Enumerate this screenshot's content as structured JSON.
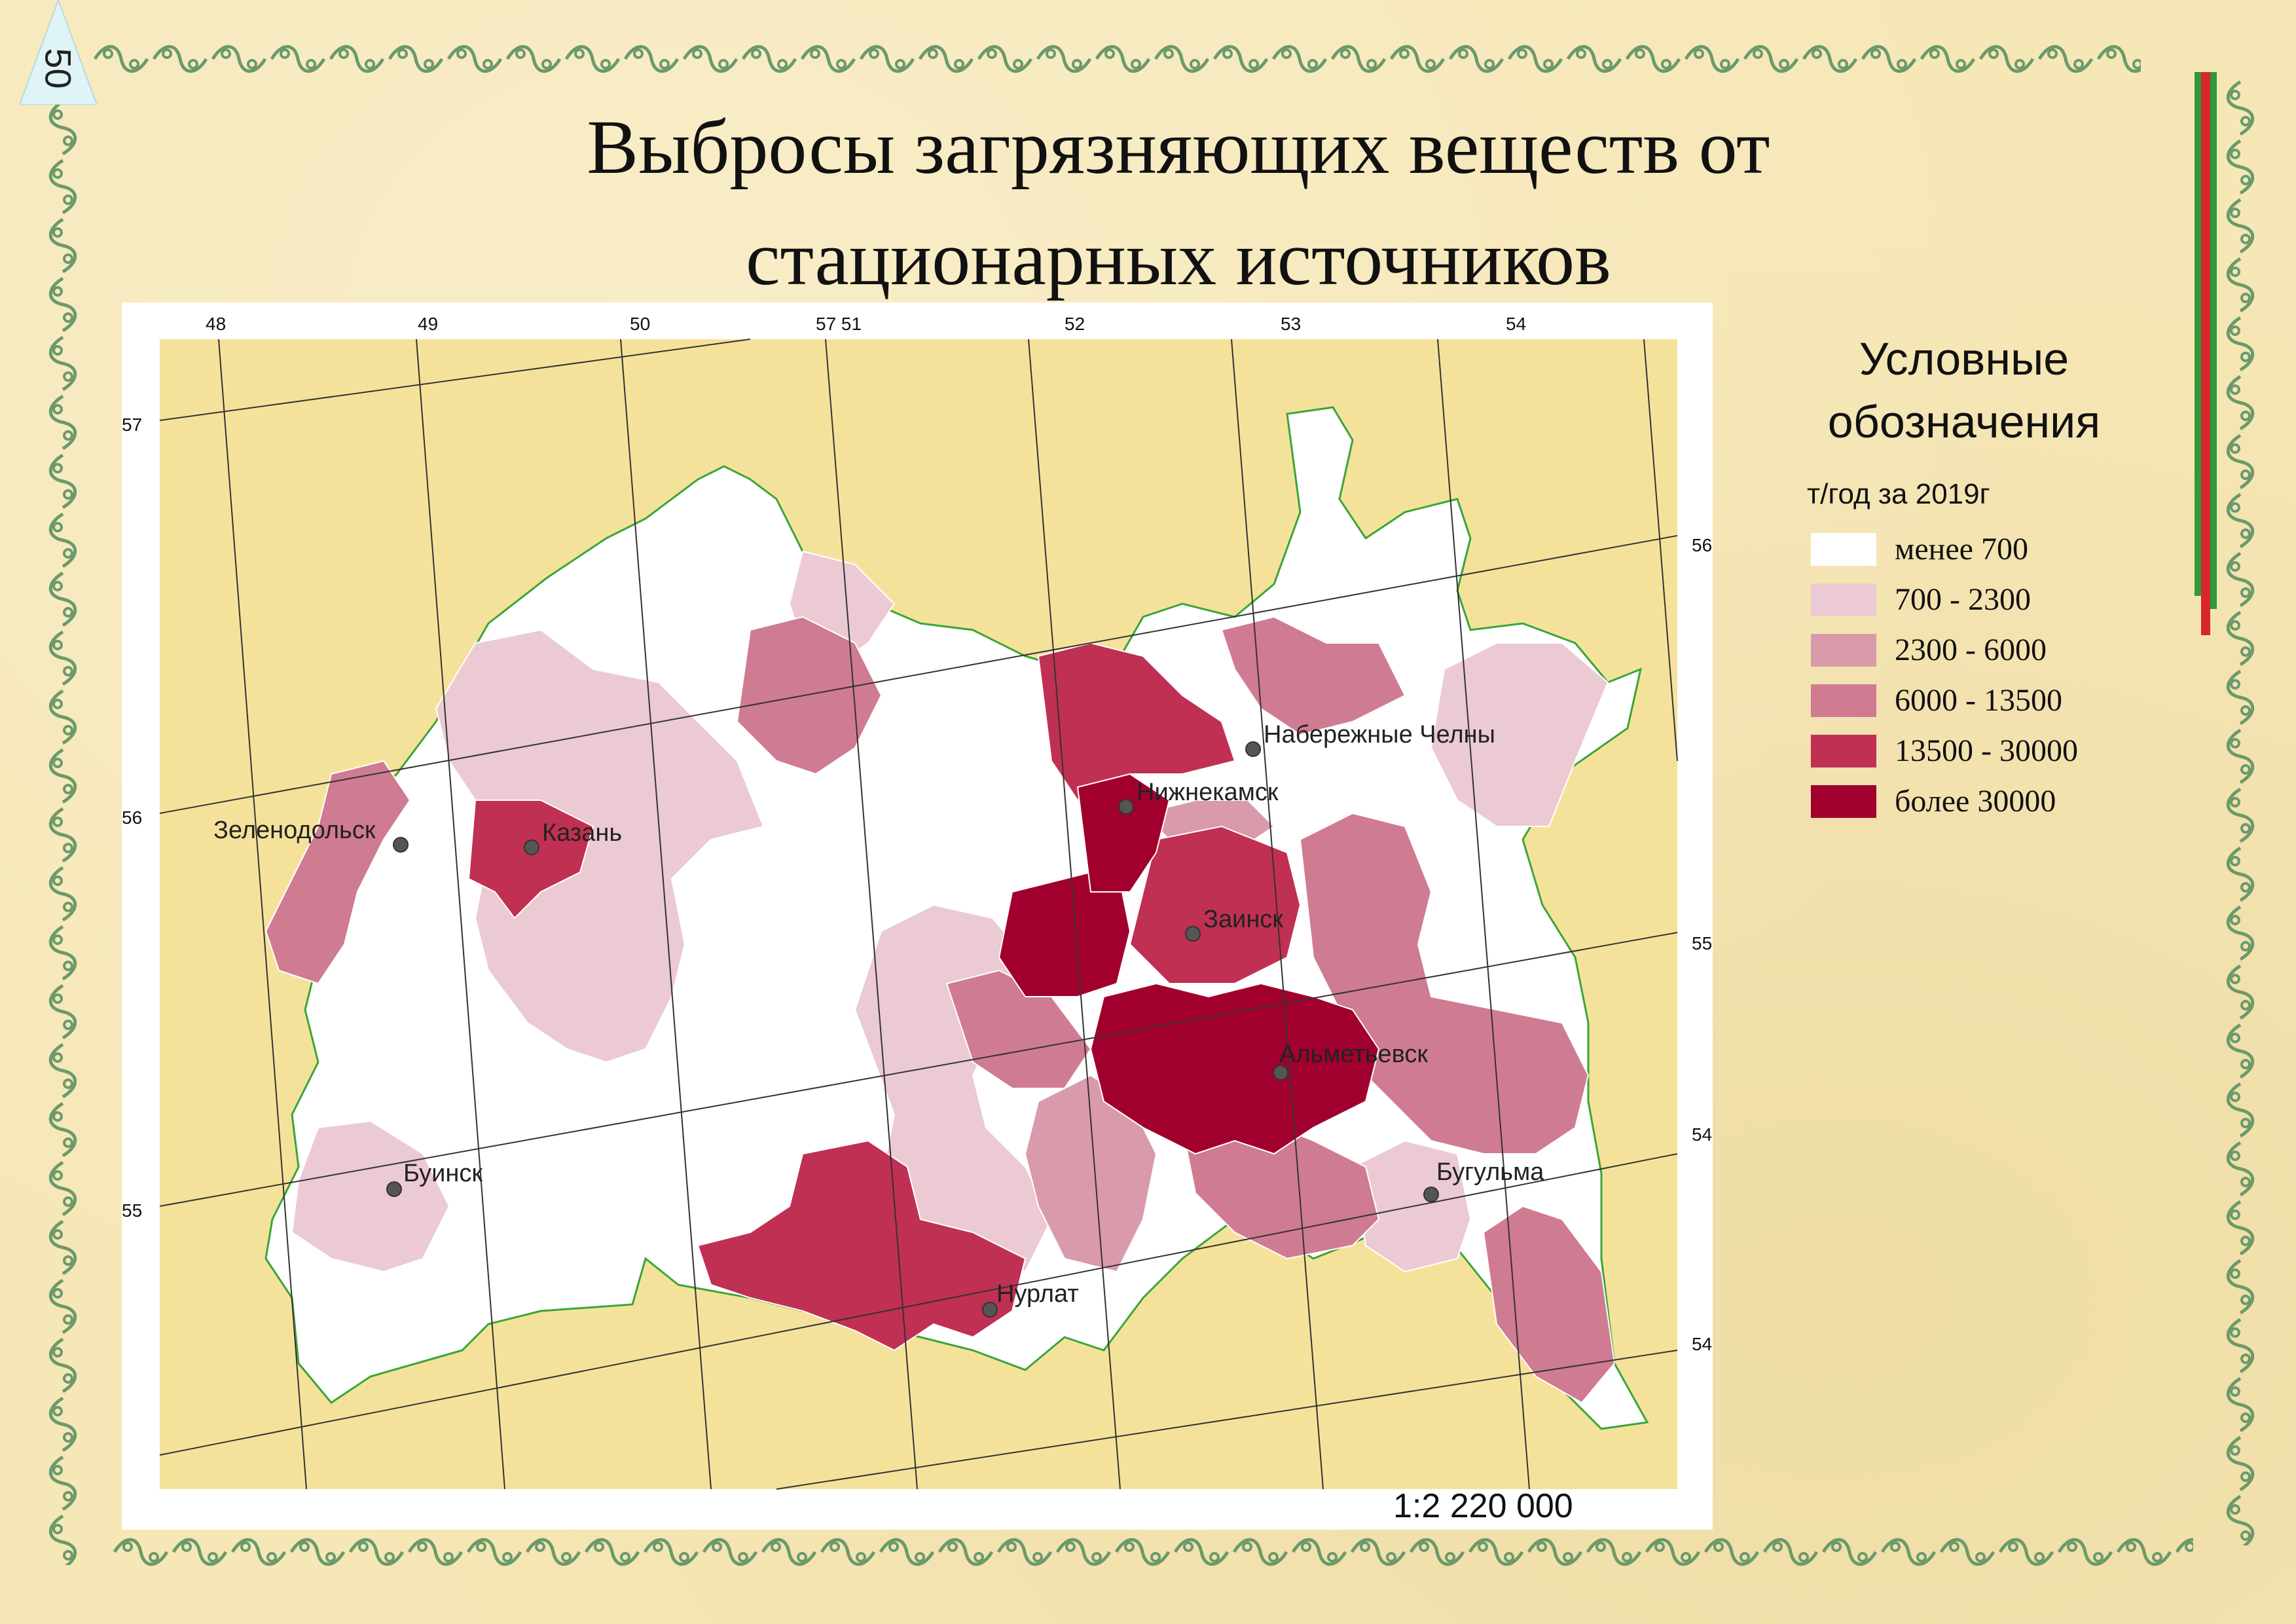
{
  "page_number": "50",
  "title_lines": [
    "Выбросы загрязняющих веществ от",
    "стационарных источников"
  ],
  "scale": "1:2 220 000",
  "legend": {
    "title_lines": [
      "Условные",
      "обозначения"
    ],
    "unit": "т/год за 2019г",
    "items": [
      {
        "label": "менее 700",
        "color": "#ffffff"
      },
      {
        "label": "700 - 2300",
        "color": "#ebcad3"
      },
      {
        "label": "2300 - 6000",
        "color": "#d99aab"
      },
      {
        "label": "6000 - 13500",
        "color": "#cf7b92"
      },
      {
        "label": "13500 - 30000",
        "color": "#c03053"
      },
      {
        "label": "более 30000",
        "color": "#a1002e"
      }
    ]
  },
  "grid_labels": {
    "lon_top": [
      "48",
      "49",
      "50",
      "57 51",
      "52",
      "53",
      "54"
    ],
    "lat_left": [
      "57",
      "56",
      "55"
    ],
    "lat_right": [
      "56",
      "55",
      "54",
      "54"
    ]
  },
  "cities": [
    {
      "name": "Набережные Челны"
    },
    {
      "name": "Нижнекамск"
    },
    {
      "name": "Зеленодольск"
    },
    {
      "name": "Казань"
    },
    {
      "name": "Заинск"
    },
    {
      "name": "Альметьевск"
    },
    {
      "name": "Буинск"
    },
    {
      "name": "Бугульма"
    },
    {
      "name": "Нурлат"
    }
  ],
  "colors": {
    "background": "#f6e7b6",
    "border": "#3aa53a",
    "ornament": "#6b9a6b"
  }
}
